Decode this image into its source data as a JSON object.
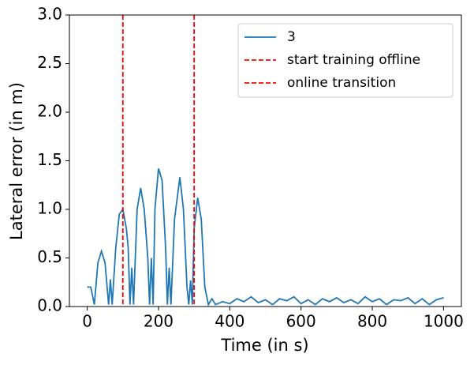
{
  "chart_data": {
    "type": "line",
    "xlabel": "Time (in s)",
    "ylabel": "Lateral error (in m)",
    "xlim": [
      -50,
      1050
    ],
    "ylim": [
      0,
      3
    ],
    "xticks": [
      0,
      200,
      400,
      600,
      800,
      1000
    ],
    "yticks": [
      {
        "value": 0,
        "label": "0.0"
      },
      0.5,
      {
        "value": 1,
        "label": "1.0"
      },
      1.5,
      {
        "value": 2,
        "label": "2.0"
      },
      2.5,
      {
        "value": 3,
        "label": "3.0"
      }
    ],
    "grid": false,
    "legend": "upper right",
    "x": [
      0,
      10,
      20,
      30,
      40,
      50,
      60,
      65,
      70,
      80,
      90,
      100,
      110,
      115,
      120,
      125,
      130,
      140,
      150,
      160,
      170,
      175,
      180,
      185,
      190,
      200,
      210,
      220,
      225,
      230,
      235,
      245,
      260,
      270,
      280,
      285,
      290,
      295,
      300,
      310,
      320,
      330,
      340,
      350,
      360,
      380,
      400,
      420,
      440,
      460,
      480,
      500,
      520,
      540,
      560,
      580,
      600,
      620,
      640,
      660,
      680,
      700,
      720,
      740,
      760,
      780,
      800,
      820,
      840,
      860,
      880,
      900,
      920,
      940,
      960,
      980,
      1000
    ],
    "series": [
      {
        "name": "3",
        "color": "#1f77b4",
        "values": [
          0.2,
          0.2,
          0.02,
          0.45,
          0.57,
          0.45,
          0.02,
          0.28,
          0.02,
          0.6,
          0.95,
          1.0,
          0.8,
          0.6,
          0.02,
          0.4,
          0.02,
          1.0,
          1.22,
          1.0,
          0.5,
          0.02,
          0.5,
          0.02,
          1.0,
          1.42,
          1.3,
          0.6,
          0.02,
          0.4,
          0.02,
          0.9,
          1.33,
          1.0,
          0.2,
          0.02,
          0.27,
          0.02,
          0.8,
          1.12,
          0.9,
          0.2,
          0.02,
          0.08,
          0.02,
          0.05,
          0.03,
          0.08,
          0.05,
          0.1,
          0.04,
          0.07,
          0.02,
          0.08,
          0.06,
          0.1,
          0.03,
          0.07,
          0.02,
          0.08,
          0.05,
          0.09,
          0.04,
          0.07,
          0.03,
          0.1,
          0.05,
          0.08,
          0.02,
          0.07,
          0.06,
          0.09,
          0.03,
          0.08,
          0.02,
          0.07,
          0.09
        ]
      }
    ],
    "vlines": [
      {
        "name": "start training offline",
        "x": 100,
        "color": "#ff0000"
      },
      {
        "name": "online transition",
        "x": 300,
        "color": "#ff0000"
      }
    ]
  }
}
